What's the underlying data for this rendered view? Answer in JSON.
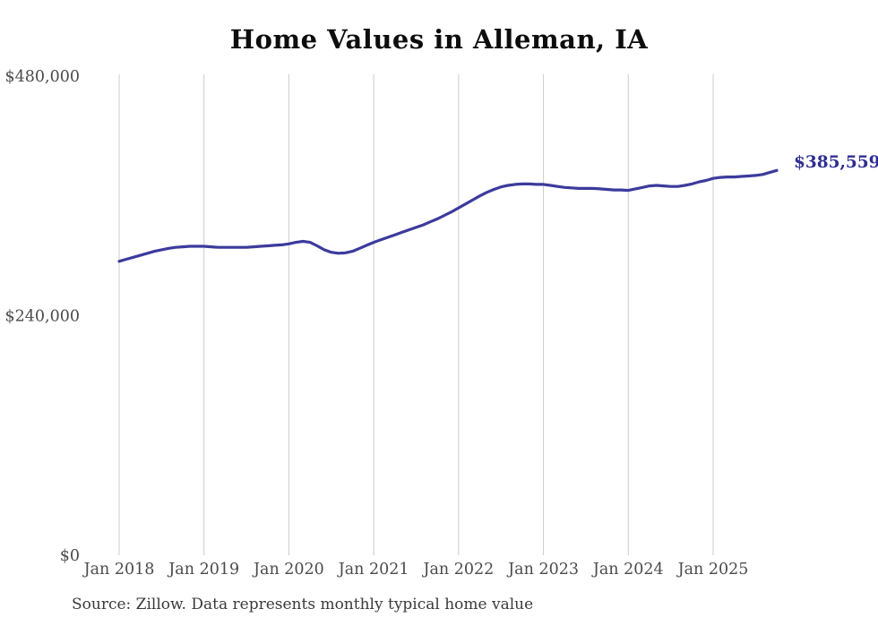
{
  "source_note": "Source: Zillow. Data represents monthly typical home value",
  "colors": {
    "line": "#3b3b9d",
    "end_label_text": "#2e2e92",
    "grid": "#cccccc",
    "axis_text": "#4b4b4b",
    "title_text": "#0d0d0d",
    "source_text": "#3a3a3a",
    "background": "#ffffff"
  },
  "chart_data": {
    "type": "line",
    "title": "Home Values in Alleman, IA",
    "end_label": "$385,559",
    "end_value": 385559,
    "xlabel": "",
    "ylabel": "",
    "ylim": [
      0,
      480000
    ],
    "grid": "vertical-only",
    "legend": "none",
    "y_ticks": [
      {
        "value": 0,
        "label": "$0"
      },
      {
        "value": 240000,
        "label": "$240,000"
      },
      {
        "value": 480000,
        "label": "$480,000"
      }
    ],
    "x_ticks": [
      {
        "label": "Jan 2018",
        "month_index": 0
      },
      {
        "label": "Jan 2019",
        "month_index": 12
      },
      {
        "label": "Jan 2020",
        "month_index": 24
      },
      {
        "label": "Jan 2021",
        "month_index": 36
      },
      {
        "label": "Jan 2022",
        "month_index": 48
      },
      {
        "label": "Jan 2023",
        "month_index": 60
      },
      {
        "label": "Jan 2024",
        "month_index": 72
      },
      {
        "label": "Jan 2025",
        "month_index": 84
      }
    ],
    "x": [
      "2018-01",
      "2018-02",
      "2018-03",
      "2018-04",
      "2018-05",
      "2018-06",
      "2018-07",
      "2018-08",
      "2018-09",
      "2018-10",
      "2018-11",
      "2018-12",
      "2019-01",
      "2019-02",
      "2019-03",
      "2019-04",
      "2019-05",
      "2019-06",
      "2019-07",
      "2019-08",
      "2019-09",
      "2019-10",
      "2019-11",
      "2019-12",
      "2020-01",
      "2020-02",
      "2020-03",
      "2020-04",
      "2020-05",
      "2020-06",
      "2020-07",
      "2020-08",
      "2020-09",
      "2020-10",
      "2020-11",
      "2020-12",
      "2021-01",
      "2021-02",
      "2021-03",
      "2021-04",
      "2021-05",
      "2021-06",
      "2021-07",
      "2021-08",
      "2021-09",
      "2021-10",
      "2021-11",
      "2021-12",
      "2022-01",
      "2022-02",
      "2022-03",
      "2022-04",
      "2022-05",
      "2022-06",
      "2022-07",
      "2022-08",
      "2022-09",
      "2022-10",
      "2022-11",
      "2022-12",
      "2023-01",
      "2023-02",
      "2023-03",
      "2023-04",
      "2023-05",
      "2023-06",
      "2023-07",
      "2023-08",
      "2023-09",
      "2023-10",
      "2023-11",
      "2023-12",
      "2024-01",
      "2024-02",
      "2024-03",
      "2024-04",
      "2024-05",
      "2024-06",
      "2024-07",
      "2024-08",
      "2024-09",
      "2024-10",
      "2024-11",
      "2024-12",
      "2025-01",
      "2025-02",
      "2025-03",
      "2025-04",
      "2025-05",
      "2025-06",
      "2025-07",
      "2025-08",
      "2025-09",
      "2025-10"
    ],
    "series": [
      {
        "name": "Typical home value",
        "values": [
          294500,
          296500,
          298500,
          300500,
          302500,
          304500,
          306000,
          307500,
          308500,
          309000,
          309500,
          309500,
          309500,
          309000,
          308500,
          308500,
          308500,
          308500,
          308500,
          309000,
          309500,
          310000,
          310500,
          311000,
          312000,
          313500,
          314500,
          313500,
          310000,
          306000,
          303500,
          302500,
          303000,
          304500,
          307500,
          310500,
          313500,
          316000,
          318500,
          321000,
          323500,
          326000,
          328500,
          331000,
          334000,
          337000,
          340500,
          344000,
          348000,
          352000,
          356000,
          360000,
          363500,
          366500,
          369000,
          370500,
          371500,
          372000,
          372000,
          371500,
          371500,
          370500,
          369500,
          368500,
          368000,
          367500,
          367500,
          367500,
          367000,
          366500,
          366000,
          366000,
          365500,
          367000,
          368500,
          370000,
          370500,
          370000,
          369500,
          369500,
          370500,
          372000,
          374000,
          375500,
          377500,
          378500,
          379000,
          379000,
          379500,
          380000,
          380500,
          381500,
          383500,
          385559
        ]
      }
    ]
  }
}
